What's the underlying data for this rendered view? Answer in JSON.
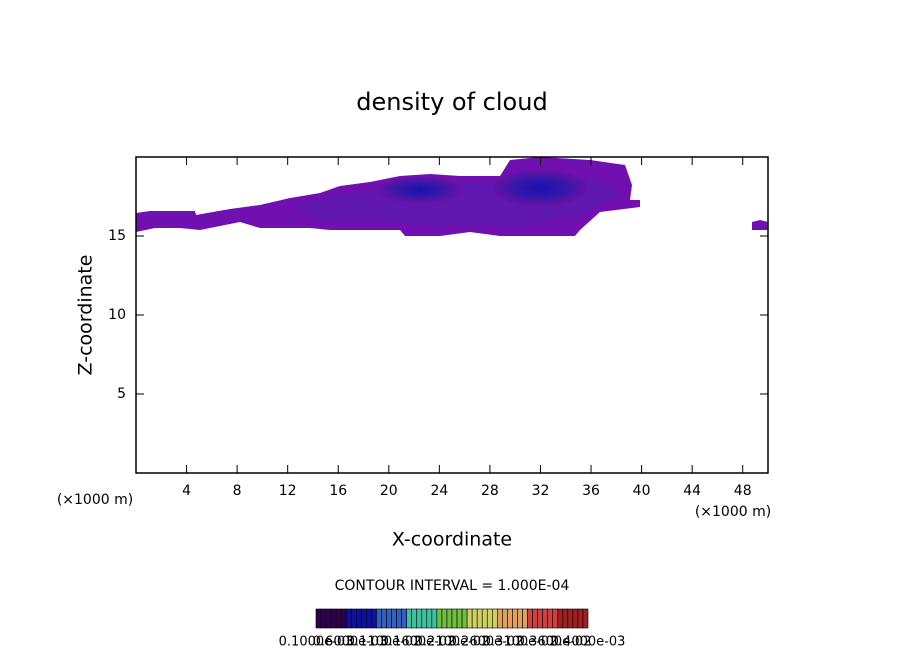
{
  "chart_data": {
    "type": "contour",
    "title": "density of cloud",
    "x_label": "X-coordinate",
    "y_label": "Z-coordinate",
    "x_unit": "(×1000 m)",
    "y_unit": "(×1000 m)",
    "xlim": [
      0,
      50
    ],
    "ylim": [
      0,
      20
    ],
    "xticks": [
      4,
      8,
      12,
      16,
      20,
      24,
      28,
      32,
      36,
      40,
      44,
      48
    ],
    "yticks": [
      5,
      10,
      15
    ],
    "contour_interval": "CONTOUR INTERVAL = 1.000E-04",
    "colorbar_labels": [
      "0.1000e-03",
      "0.6000e-03",
      "0.1100e-02",
      "0.1600e-02",
      "0.2100e-02",
      "0.2600e-02",
      "0.3100e-02",
      "0.3600e-02",
      "0.4000e-03"
    ],
    "colorbar_colors": [
      "#300050",
      "#1010a0",
      "#3060c0",
      "#40c0a0",
      "#70c040",
      "#d0d060",
      "#e0a060",
      "#d04040",
      "#a02020"
    ]
  }
}
